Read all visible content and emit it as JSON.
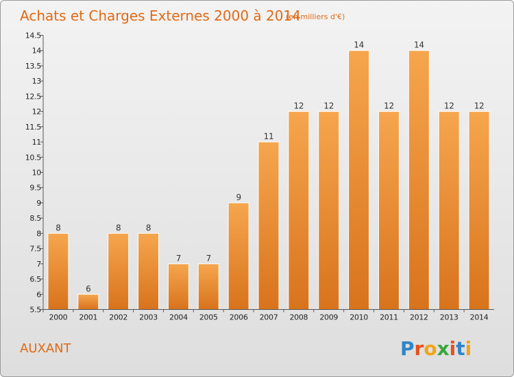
{
  "title": "Achats et Charges Externes 2000 à 2014",
  "subtitle": "(en milliers d'€)",
  "place_label": "AUXANT",
  "logo": {
    "letters": [
      "P",
      "r",
      "o",
      "x",
      "i",
      "t",
      "i"
    ],
    "colors": [
      "#2f86c9",
      "#e8501c",
      "#f2a31b",
      "#3aa63a",
      "#e8501c",
      "#2f86c9",
      "#f2a31b"
    ]
  },
  "colors": {
    "accent": "#e06a14",
    "bar_top": "#f6a64e",
    "bar_bottom": "#d8731c",
    "axis": "#555555"
  },
  "chart_data": {
    "type": "bar",
    "title": "Achats et Charges Externes 2000 à 2014",
    "subtitle": "(en milliers d'€)",
    "categories": [
      "2000",
      "2001",
      "2002",
      "2003",
      "2004",
      "2005",
      "2006",
      "2007",
      "2008",
      "2009",
      "2010",
      "2011",
      "2012",
      "2013",
      "2014"
    ],
    "values": [
      8,
      6,
      8,
      8,
      7,
      7,
      9,
      11,
      12,
      12,
      14,
      12,
      14,
      12,
      12
    ],
    "value_labels": [
      "8",
      "6",
      "8",
      "8",
      "7",
      "7",
      "9",
      "11",
      "12",
      "12",
      "14",
      "12",
      "14",
      "12",
      "12"
    ],
    "ylim": [
      5.5,
      14.5
    ],
    "yticks": [
      "5.5",
      "6",
      "6.5",
      "7",
      "7.5",
      "8",
      "8.5",
      "9",
      "9.5",
      "10",
      "10.5",
      "11",
      "11.5",
      "12",
      "12.5",
      "13",
      "13.5",
      "14",
      "14.5"
    ],
    "grid": false,
    "legend": "none"
  }
}
